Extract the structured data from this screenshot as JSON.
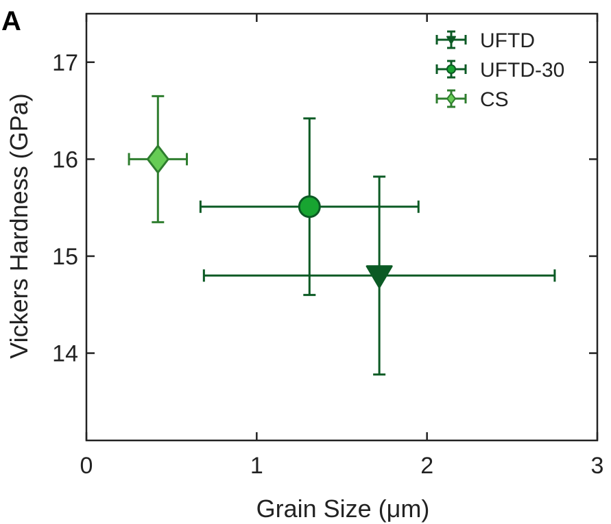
{
  "panel_label": "A",
  "chart_data": {
    "type": "scatter",
    "xlabel": "Grain Size (μm)",
    "ylabel": "Vickers Hardness (GPa)",
    "xlim": [
      0,
      3
    ],
    "ylim": [
      13.1,
      17.5
    ],
    "xticks": [
      0,
      1,
      2,
      3
    ],
    "yticks": [
      14,
      15,
      16,
      17
    ],
    "grid": false,
    "legend_position": "top-right",
    "series": [
      {
        "name": "UFTD",
        "marker": "triangle-down",
        "color": "#0b5a24",
        "fill": "#0b5a24",
        "x": 1.72,
        "y": 14.8,
        "xerr": [
          1.03,
          1.03
        ],
        "yerr": [
          1.02,
          1.02
        ]
      },
      {
        "name": "UFTD-30",
        "marker": "circle",
        "color": "#0b5a24",
        "fill": "#18a531",
        "x": 1.31,
        "y": 15.51,
        "xerr": [
          0.64,
          0.64
        ],
        "yerr": [
          0.91,
          0.91
        ]
      },
      {
        "name": "CS",
        "marker": "diamond",
        "color": "#2e7d2e",
        "fill": "#66cc55",
        "x": 0.42,
        "y": 16.0,
        "xerr": [
          0.17,
          0.17
        ],
        "yerr": [
          0.65,
          0.65
        ]
      }
    ]
  }
}
